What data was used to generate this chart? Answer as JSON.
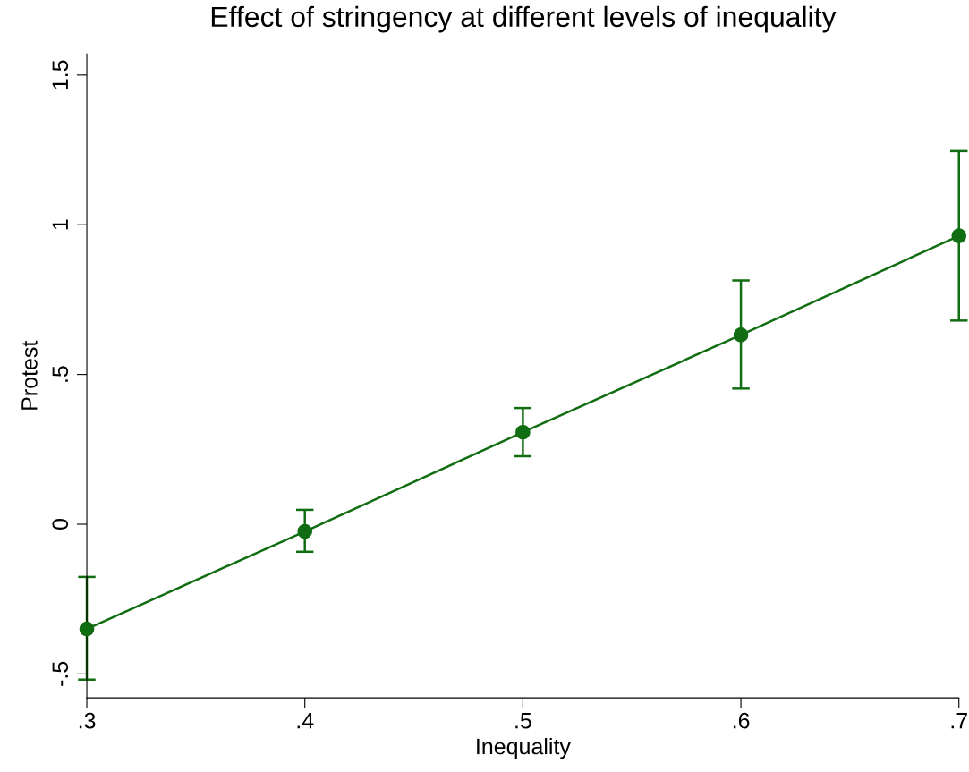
{
  "chart_data": {
    "type": "line",
    "title": "Effect of stringency at different levels of inequality",
    "xlabel": "Inequality",
    "ylabel": "Protest",
    "x": [
      0.3,
      0.4,
      0.5,
      0.6,
      0.7
    ],
    "series": [
      {
        "color": "#116d11",
        "values": [
          -0.35,
          -0.024,
          0.307,
          0.632,
          0.963
        ],
        "errors": [
          [
            -0.519,
            -0.176
          ],
          [
            -0.092,
            0.048
          ],
          [
            0.227,
            0.388
          ],
          [
            0.453,
            0.814
          ],
          [
            0.68,
            1.246
          ]
        ]
      }
    ],
    "marker": "circle",
    "line_style": "solid",
    "grid": false,
    "legend": false,
    "xlim": [
      0.3,
      0.7
    ],
    "ylim": [
      -0.58,
      1.57
    ],
    "xticks": [
      {
        "value": 0.3,
        "label": ".3"
      },
      {
        "value": 0.4,
        "label": ".4"
      },
      {
        "value": 0.5,
        "label": ".5"
      },
      {
        "value": 0.6,
        "label": ".6"
      },
      {
        "value": 0.7,
        "label": ".7"
      }
    ],
    "yticks": [
      {
        "value": -0.5,
        "label": "-.5"
      },
      0,
      {
        "value": 0.5,
        "label": ".5"
      },
      1,
      {
        "value": 1.5,
        "label": "1.5"
      }
    ]
  }
}
